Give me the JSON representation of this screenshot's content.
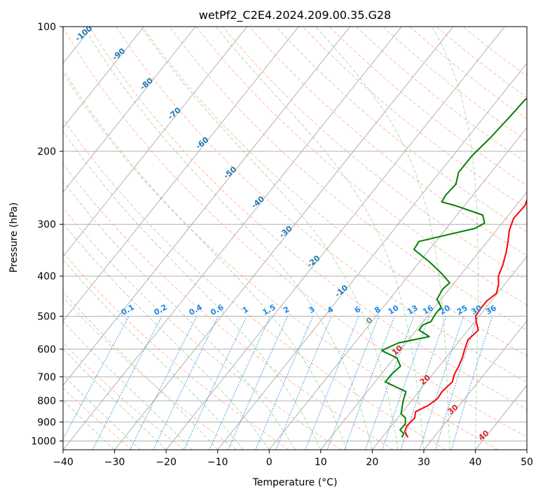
{
  "chart_data": {
    "type": "line",
    "title": "wetPf2_C2E4.2024.209.00.35.G28",
    "xlabel": "Temperature (°C)",
    "ylabel": "Pressure (hPa)",
    "xlim": [
      -40,
      50
    ],
    "ylim": [
      1050,
      100
    ],
    "y_scale": "log",
    "grid": true,
    "x_ticks": [
      "−40",
      "−30",
      "−20",
      "−10",
      "0",
      "10",
      "20",
      "30",
      "40",
      "50"
    ],
    "y_ticks": [
      "100",
      "200",
      "300",
      "400",
      "500",
      "600",
      "700",
      "800",
      "900",
      "1000"
    ],
    "series": [
      {
        "color": "#ff0000",
        "points": [
          [
            25,
            980
          ],
          [
            23.5,
            950
          ],
          [
            23,
            920
          ],
          [
            23.3,
            880
          ],
          [
            22.5,
            850
          ],
          [
            24,
            820
          ],
          [
            24.7,
            790
          ],
          [
            24.5,
            760
          ],
          [
            25,
            720
          ],
          [
            24.2,
            690
          ],
          [
            23.8,
            660
          ],
          [
            23.2,
            630
          ],
          [
            22.3,
            600
          ],
          [
            21.5,
            570
          ],
          [
            22,
            540
          ],
          [
            20.6,
            520
          ],
          [
            19.3,
            500
          ],
          [
            19.1,
            480
          ],
          [
            19.1,
            460
          ],
          [
            19.8,
            440
          ],
          [
            18.9,
            420
          ],
          [
            17.5,
            400
          ],
          [
            16.6,
            375
          ],
          [
            15.3,
            350
          ],
          [
            14.0,
            330
          ],
          [
            12.5,
            310
          ],
          [
            11.5,
            290
          ],
          [
            11.6,
            280
          ],
          [
            11.7,
            270
          ],
          [
            11.0,
            258
          ],
          [
            10.8,
            250
          ],
          [
            9.3,
            235
          ],
          [
            7.3,
            218
          ],
          [
            6.1,
            205
          ],
          [
            4.8,
            190
          ],
          [
            3.5,
            170
          ],
          [
            2.3,
            150
          ],
          [
            1.6,
            130
          ],
          [
            1.7,
            120
          ],
          [
            1.3,
            114
          ],
          [
            2.2,
            110
          ],
          [
            3.0,
            104
          ],
          [
            3.6,
            100
          ]
        ]
      },
      {
        "color": "#008000",
        "points": [
          [
            23.8,
            980
          ],
          [
            23.6,
            960
          ],
          [
            22.3,
            940
          ],
          [
            22.4,
            910
          ],
          [
            21.5,
            880
          ],
          [
            20.0,
            860
          ],
          [
            18.4,
            800
          ],
          [
            17.5,
            760
          ],
          [
            12.0,
            720
          ],
          [
            12.0,
            690
          ],
          [
            12.5,
            660
          ],
          [
            10.5,
            630
          ],
          [
            6.4,
            605
          ],
          [
            8.5,
            580
          ],
          [
            13.5,
            560
          ],
          [
            10.5,
            540
          ],
          [
            10.4,
            525
          ],
          [
            11.5,
            515
          ],
          [
            11.2,
            495
          ],
          [
            11.2,
            475
          ],
          [
            9.2,
            455
          ],
          [
            8.7,
            430
          ],
          [
            9.1,
            415
          ],
          [
            6.2,
            395
          ],
          [
            2.0,
            370
          ],
          [
            -3.0,
            345
          ],
          [
            -3.3,
            330
          ],
          [
            5.5,
            307
          ],
          [
            6.6,
            298
          ],
          [
            5.0,
            285
          ],
          [
            -2.0,
            270
          ],
          [
            -5.0,
            265
          ],
          [
            -5.3,
            255
          ],
          [
            -5.0,
            240
          ],
          [
            -6.3,
            225
          ],
          [
            -6.3,
            205
          ],
          [
            -5.5,
            185
          ],
          [
            -5.0,
            165
          ],
          [
            -4.7,
            150
          ],
          [
            -3.0,
            140
          ],
          [
            -1.8,
            135
          ],
          [
            0.9,
            130
          ],
          [
            1.6,
            122
          ],
          [
            1.4,
            113
          ],
          [
            1.8,
            108
          ],
          [
            0.6,
            103
          ],
          [
            0.3,
            100
          ]
        ]
      }
    ],
    "dry_adiabat_labels": [
      "-100",
      "-90",
      "-80",
      "-70",
      "-60",
      "-50",
      "-40",
      "-30",
      "-20",
      "-10",
      "0",
      "10",
      "20",
      "30",
      "40"
    ],
    "mixing_ratio_labels": [
      "0.1",
      "0.2",
      "0.4",
      "0.6",
      "1",
      "1.5",
      "2",
      "3",
      "4",
      "6",
      "8",
      "10",
      "13",
      "16",
      "20",
      "25",
      "30",
      "36"
    ],
    "colors": {
      "temperature": "#ff0000",
      "dewpoint": "#008000",
      "isotherm": "#a0a0a0",
      "dry_adiabat": "#ff9f80",
      "moist_adiabat": "#7fbf7f",
      "mixing_ratio": "#1e88e5",
      "cold_labels": "#1f77b4",
      "warm_labels": "#d62728",
      "zero_label": "#808080"
    }
  }
}
